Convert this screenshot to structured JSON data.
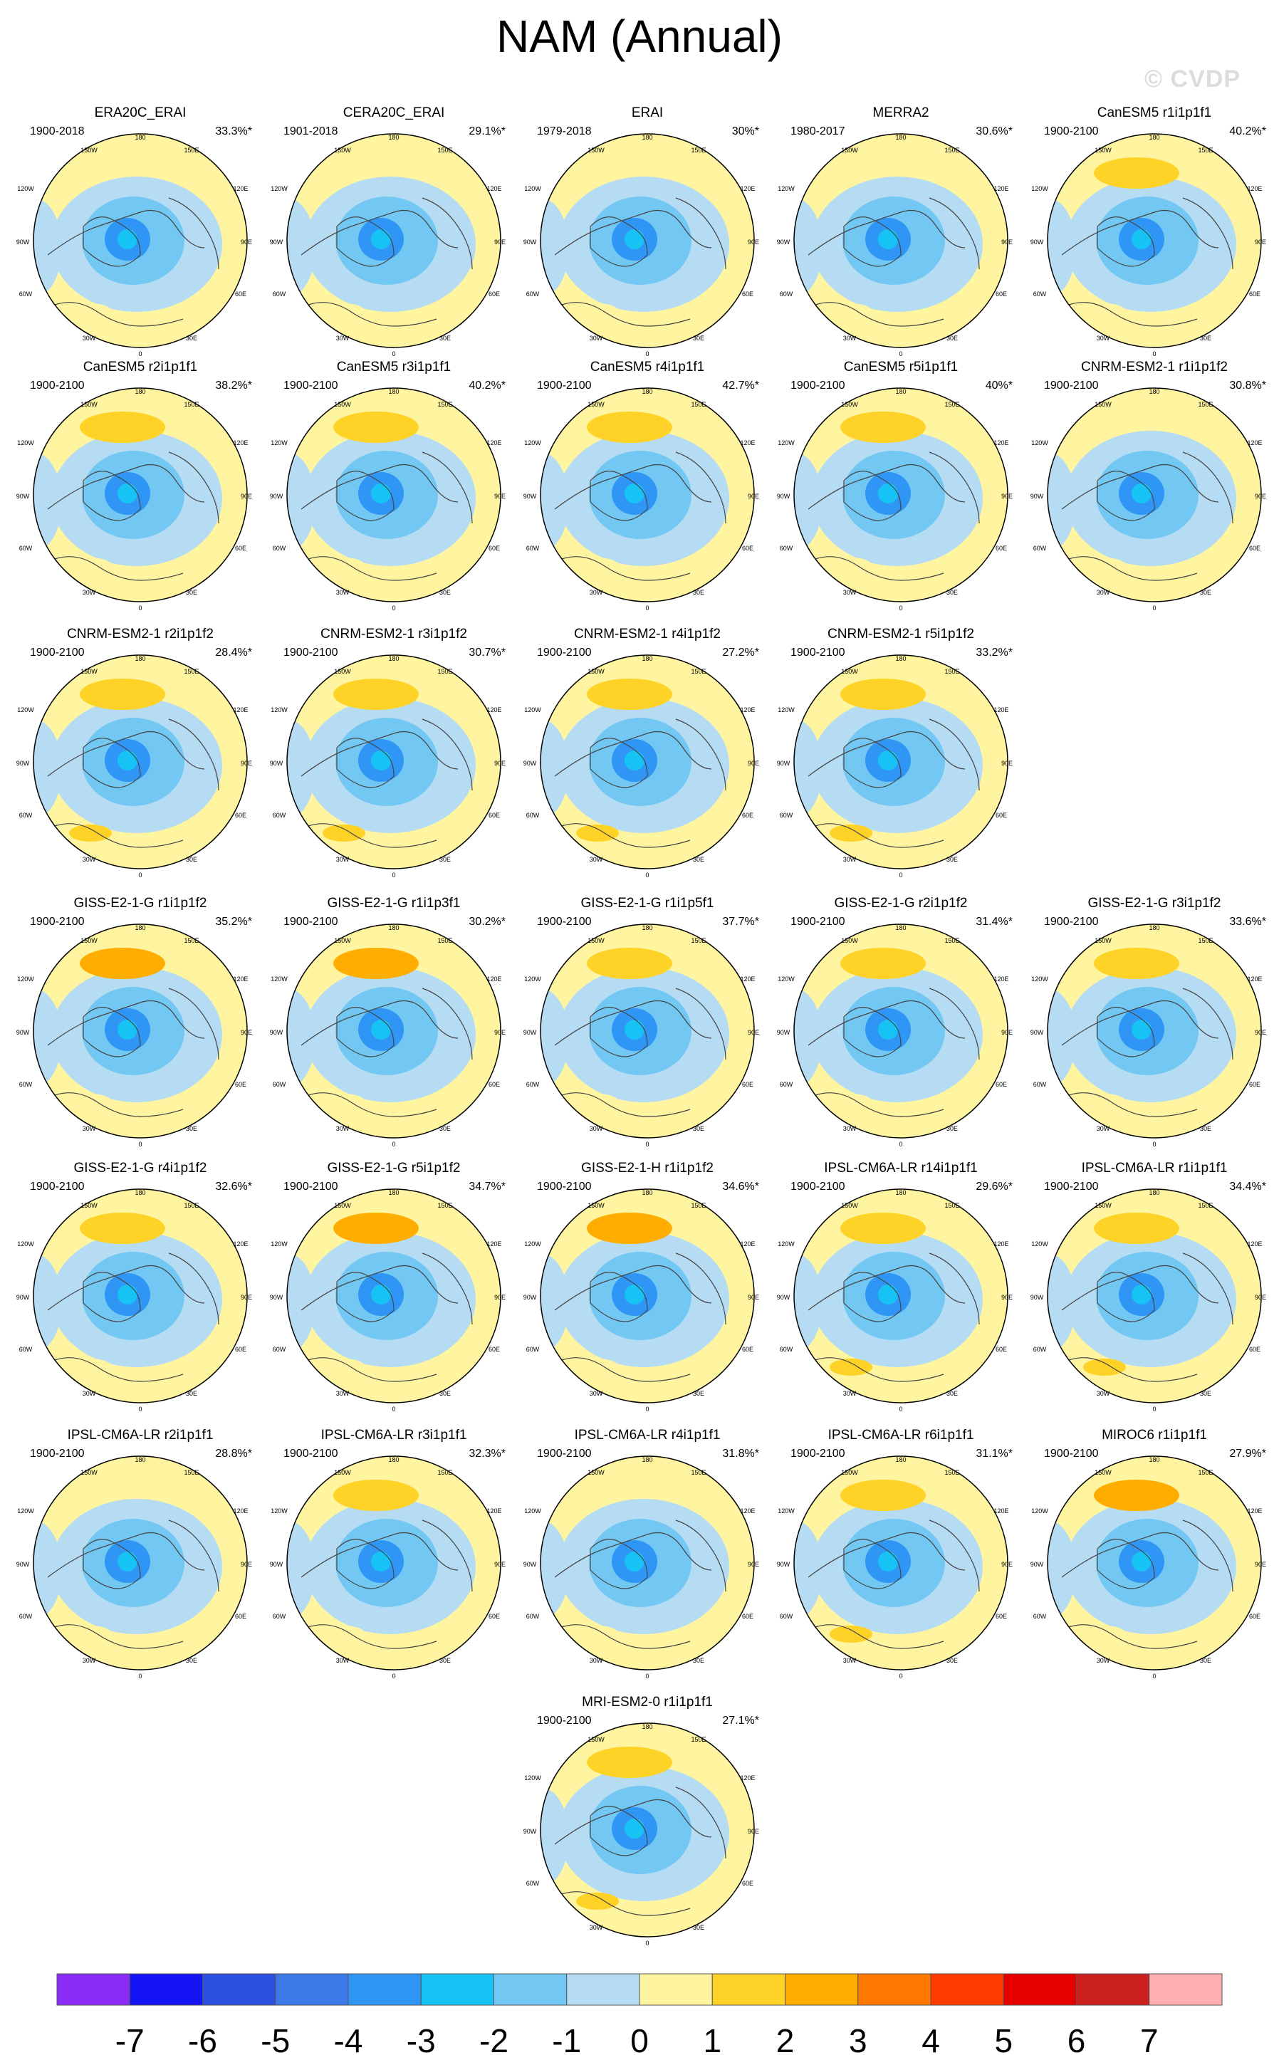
{
  "title": "NAM (Annual)",
  "watermark": "© CVDP",
  "map_labels": {
    "top": "180",
    "bottom": "0",
    "lon_150w": "150W",
    "lon_150e": "150E",
    "lon_120w": "120W",
    "lon_120e": "120E",
    "lon_90w": "90W",
    "lon_90e": "90E",
    "lon_60w": "60W",
    "lon_60e": "60E",
    "lon_30w": "30W",
    "lon_30e": "30E"
  },
  "panels": [
    {
      "name": "ERA20C_ERAI",
      "period": "1900-2018",
      "pct": "33.3%*",
      "high": 0
    },
    {
      "name": "CERA20C_ERAI",
      "period": "1901-2018",
      "pct": "29.1%*",
      "high": 0
    },
    {
      "name": "ERAI",
      "period": "1979-2018",
      "pct": "30%*",
      "high": 0
    },
    {
      "name": "MERRA2",
      "period": "1980-2017",
      "pct": "30.6%*",
      "high": 0
    },
    {
      "name": "CanESM5 r1i1p1f1",
      "period": "1900-2100",
      "pct": "40.2%*",
      "high": 2
    },
    {
      "name": "CanESM5 r2i1p1f1",
      "period": "1900-2100",
      "pct": "38.2%*",
      "high": 2
    },
    {
      "name": "CanESM5 r3i1p1f1",
      "period": "1900-2100",
      "pct": "40.2%*",
      "high": 2
    },
    {
      "name": "CanESM5 r4i1p1f1",
      "period": "1900-2100",
      "pct": "42.7%*",
      "high": 2
    },
    {
      "name": "CanESM5 r5i1p1f1",
      "period": "1900-2100",
      "pct": "40%*",
      "high": 2
    },
    {
      "name": "CNRM-ESM2-1 r1i1p1f2",
      "period": "1900-2100",
      "pct": "30.8%*",
      "high": 0
    },
    {
      "name": "CNRM-ESM2-1 r2i1p1f2",
      "period": "1900-2100",
      "pct": "28.4%*",
      "high": 1
    },
    {
      "name": "CNRM-ESM2-1 r3i1p1f2",
      "period": "1900-2100",
      "pct": "30.7%*",
      "high": 1
    },
    {
      "name": "CNRM-ESM2-1 r4i1p1f2",
      "period": "1900-2100",
      "pct": "27.2%*",
      "high": 1
    },
    {
      "name": "CNRM-ESM2-1 r5i1p1f2",
      "period": "1900-2100",
      "pct": "33.2%*",
      "high": 1
    },
    {
      "name": "GISS-E2-1-G r1i1p1f2",
      "period": "1900-2100",
      "pct": "35.2%*",
      "high": 3
    },
    {
      "name": "GISS-E2-1-G r1i1p3f1",
      "period": "1900-2100",
      "pct": "30.2%*",
      "high": 3
    },
    {
      "name": "GISS-E2-1-G r1i1p5f1",
      "period": "1900-2100",
      "pct": "37.7%*",
      "high": 2
    },
    {
      "name": "GISS-E2-1-G r2i1p1f2",
      "period": "1900-2100",
      "pct": "31.4%*",
      "high": 2
    },
    {
      "name": "GISS-E2-1-G r3i1p1f2",
      "period": "1900-2100",
      "pct": "33.6%*",
      "high": 2
    },
    {
      "name": "GISS-E2-1-G r4i1p1f2",
      "period": "1900-2100",
      "pct": "32.6%*",
      "high": 2
    },
    {
      "name": "GISS-E2-1-G r5i1p1f2",
      "period": "1900-2100",
      "pct": "34.7%*",
      "high": 3
    },
    {
      "name": "GISS-E2-1-H r1i1p1f2",
      "period": "1900-2100",
      "pct": "34.6%*",
      "high": 3
    },
    {
      "name": "IPSL-CM6A-LR r14i1p1f1",
      "period": "1900-2100",
      "pct": "29.6%*",
      "high": 1
    },
    {
      "name": "IPSL-CM6A-LR r1i1p1f1",
      "period": "1900-2100",
      "pct": "34.4%*",
      "high": 1
    },
    {
      "name": "IPSL-CM6A-LR r2i1p1f1",
      "period": "1900-2100",
      "pct": "28.8%*",
      "high": 0
    },
    {
      "name": "IPSL-CM6A-LR r3i1p1f1",
      "period": "1900-2100",
      "pct": "32.3%*",
      "high": 2
    },
    {
      "name": "IPSL-CM6A-LR r4i1p1f1",
      "period": "1900-2100",
      "pct": "31.8%*",
      "high": 0
    },
    {
      "name": "IPSL-CM6A-LR r6i1p1f1",
      "period": "1900-2100",
      "pct": "31.1%*",
      "high": 1
    },
    {
      "name": "MIROC6 r1i1p1f1",
      "period": "1900-2100",
      "pct": "27.9%*",
      "high": 3
    },
    {
      "name": "MRI-ESM2-0 r1i1p1f1",
      "period": "1900-2100",
      "pct": "27.1%*",
      "high": 1
    }
  ],
  "colorbar": {
    "colors": [
      "#8b2cf5",
      "#1414f5",
      "#2c4fe0",
      "#3b78e8",
      "#2f96f5",
      "#17c3f5",
      "#72c8f2",
      "#b6dcf3",
      "#fff5a0",
      "#ffd227",
      "#ffad00",
      "#ff7800",
      "#ff3c00",
      "#e60000",
      "#cc1f1f",
      "#ffb1b1"
    ],
    "labels": [
      "-7",
      "-6",
      "-5",
      "-4",
      "-3",
      "-2",
      "-1",
      "0",
      "1",
      "2",
      "3",
      "4",
      "5",
      "6",
      "7"
    ]
  }
}
